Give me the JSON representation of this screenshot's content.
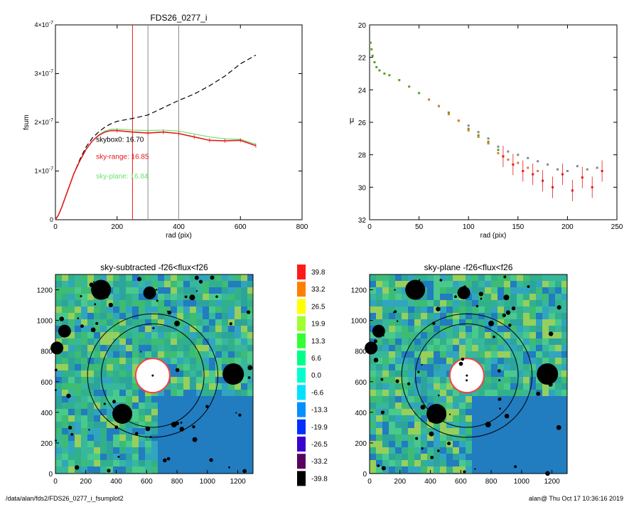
{
  "footer": {
    "path": "/data/alan/fds2/FDS26_0277_i_fsumplot2",
    "user_time": "alan@  Thu Oct 17 10:36:16 2019"
  },
  "colors": {
    "black": "#000000",
    "red": "#e41a1c",
    "green": "#6ee06e",
    "gray_line": "#8c8c8c",
    "profile_green": "#5aa020",
    "profile_orange": "#e07a2a",
    "profile_gray": "#888888"
  },
  "chart_data": [
    {
      "id": "fsum",
      "type": "line",
      "title": "FDS26_0277_i",
      "xlabel": "rad (pix)",
      "ylabel": "fsum",
      "xlim": [
        0,
        800
      ],
      "ylim": [
        0,
        4e-07
      ],
      "xticks": [
        0,
        200,
        400,
        600,
        800
      ],
      "yticks": [
        {
          "value": 0,
          "label": "0"
        },
        {
          "value": 1e-07,
          "mant": "1×10",
          "exp": "-7"
        },
        {
          "value": 2e-07,
          "mant": "2×10",
          "exp": "-7"
        },
        {
          "value": 3e-07,
          "mant": "3×10",
          "exp": "-7"
        },
        {
          "value": 4e-07,
          "mant": "4×10",
          "exp": "-7"
        }
      ],
      "vlines": [
        {
          "x": 250,
          "color": "red"
        },
        {
          "x": 300,
          "color": "gray"
        },
        {
          "x": 400,
          "color": "gray"
        }
      ],
      "annotations": [
        {
          "text": "skybox0: 16.70",
          "x": 150,
          "y": 1.6e-07,
          "color": "black"
        },
        {
          "text": "sky-range: 16.85",
          "x": 150,
          "y": 1.25e-07,
          "color": "red"
        },
        {
          "text": "sky-plane: 16.84",
          "x": 150,
          "y": 8.5e-08,
          "color": "green"
        }
      ],
      "series": [
        {
          "style": "dashed",
          "color": "black",
          "x": [
            0,
            10,
            20,
            40,
            60,
            80,
            100,
            120,
            140,
            160,
            180,
            200,
            250,
            300,
            350,
            400,
            450,
            500,
            550,
            600,
            650
          ],
          "y": [
            0,
            1e-08,
            2.5e-08,
            6e-08,
            9.5e-08,
            1.25e-07,
            1.5e-07,
            1.68e-07,
            1.8e-07,
            1.9e-07,
            1.97e-07,
            2.02e-07,
            2.08e-07,
            2.15e-07,
            2.3e-07,
            2.45e-07,
            2.58e-07,
            2.75e-07,
            2.95e-07,
            3.2e-07,
            3.38e-07
          ]
        },
        {
          "style": "solid",
          "color": "green",
          "x": [
            0,
            10,
            20,
            40,
            60,
            80,
            100,
            120,
            140,
            160,
            180,
            200,
            250,
            300,
            350,
            400,
            450,
            500,
            550,
            600,
            650
          ],
          "y": [
            0,
            1e-08,
            2.5e-08,
            6e-08,
            9.5e-08,
            1.22e-07,
            1.45e-07,
            1.62e-07,
            1.74e-07,
            1.82e-07,
            1.86e-07,
            1.86e-07,
            1.84e-07,
            1.83e-07,
            1.84e-07,
            1.82e-07,
            1.76e-07,
            1.7e-07,
            1.66e-07,
            1.65e-07,
            1.55e-07
          ]
        },
        {
          "style": "solid-errbar",
          "color": "red",
          "x": [
            0,
            10,
            20,
            40,
            60,
            80,
            100,
            120,
            140,
            160,
            180,
            200,
            250,
            300,
            350,
            400,
            450,
            500,
            550,
            600,
            650
          ],
          "y": [
            0,
            1e-08,
            2.5e-08,
            6e-08,
            9.5e-08,
            1.22e-07,
            1.45e-07,
            1.62e-07,
            1.73e-07,
            1.8e-07,
            1.83e-07,
            1.83e-07,
            1.8e-07,
            1.78e-07,
            1.8e-07,
            1.77e-07,
            1.7e-07,
            1.63e-07,
            1.62e-07,
            1.63e-07,
            1.52e-07
          ]
        }
      ]
    },
    {
      "id": "mu",
      "type": "scatter",
      "xlabel": "rad (pix)",
      "ylabel": "μ",
      "xlim": [
        0,
        250
      ],
      "ylim": [
        32,
        20
      ],
      "xticks": [
        0,
        50,
        100,
        150,
        200,
        250
      ],
      "yticks": [
        20,
        22,
        24,
        26,
        28,
        30,
        32
      ],
      "series": [
        {
          "color": "green",
          "x": [
            1,
            2,
            3,
            5,
            7,
            10,
            15,
            20,
            30,
            40,
            50,
            60,
            70,
            80,
            90,
            100,
            110,
            120,
            130
          ],
          "y": [
            21.1,
            21.5,
            21.9,
            22.3,
            22.6,
            22.8,
            23.0,
            23.1,
            23.4,
            23.8,
            24.2,
            24.6,
            25.0,
            25.4,
            25.9,
            26.4,
            26.8,
            27.2,
            27.7
          ]
        },
        {
          "color": "orange",
          "x": [
            60,
            70,
            80,
            90,
            100,
            110,
            120,
            130,
            140,
            150,
            160,
            170
          ],
          "y": [
            24.6,
            25.0,
            25.5,
            25.9,
            26.5,
            26.9,
            27.3,
            27.9,
            28.3,
            28.5,
            28.8,
            29.0
          ]
        },
        {
          "color": "gray",
          "x": [
            100,
            110,
            120,
            130,
            140,
            150,
            160,
            170,
            180,
            190,
            200,
            210,
            220,
            230
          ],
          "y": [
            26.2,
            26.6,
            27.0,
            27.5,
            27.8,
            28.0,
            28.2,
            28.4,
            28.6,
            28.9,
            29.0,
            28.7,
            28.9,
            28.8
          ]
        },
        {
          "color": "red",
          "x": [
            135,
            145,
            155,
            165,
            175,
            185,
            195,
            205,
            215,
            225,
            235
          ],
          "y": [
            28.1,
            28.6,
            29.0,
            29.2,
            29.6,
            30.0,
            29.2,
            30.2,
            29.4,
            30.0,
            29.0
          ]
        }
      ]
    }
  ],
  "images": [
    {
      "title": "sky-subtracted -f26<flux<f26",
      "xticks": [
        0,
        200,
        400,
        600,
        800,
        1000,
        1200
      ],
      "yticks": [
        0,
        200,
        400,
        600,
        800,
        1000,
        1200
      ],
      "range": [
        0,
        1300
      ]
    },
    {
      "title": "sky-plane -f26<flux<f26",
      "xticks": [
        0,
        200,
        400,
        600,
        800,
        1000,
        1200
      ],
      "yticks": [
        0,
        200,
        400,
        600,
        800,
        1000,
        1200
      ],
      "range": [
        0,
        1300
      ]
    }
  ],
  "colorbar": {
    "labels": [
      "39.8",
      "33.2",
      "26.5",
      "19.9",
      "13.3",
      "6.6",
      "0.0",
      "-6.6",
      "-13.3",
      "-19.9",
      "-26.5",
      "-33.2",
      "-39.8"
    ],
    "colors": [
      "#ff1a1a",
      "#ff8000",
      "#ffff00",
      "#a0ff30",
      "#33ff33",
      "#00ff88",
      "#00ffcc",
      "#00e0ff",
      "#0090ff",
      "#0030ff",
      "#3a00d0",
      "#5a0060",
      "#000000"
    ]
  }
}
